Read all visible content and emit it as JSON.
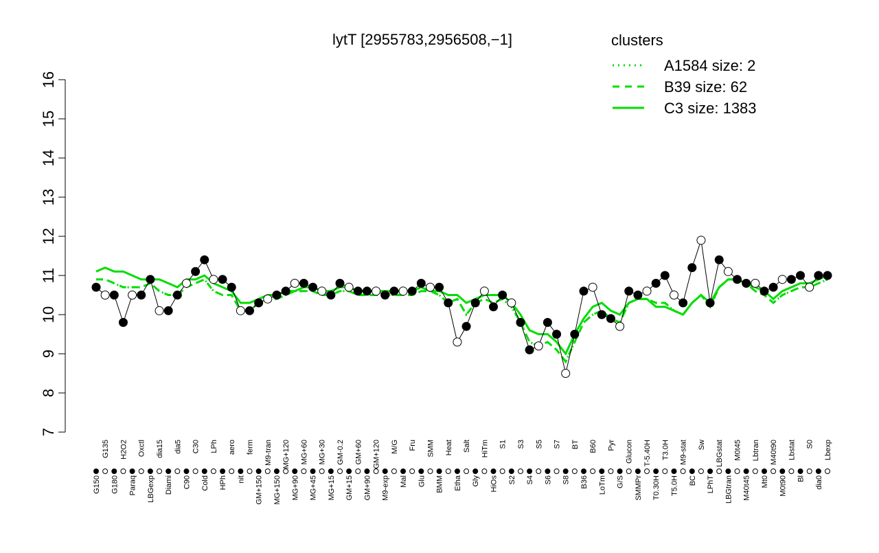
{
  "chart_data": {
    "type": "line",
    "title": "lytT [2955783,2956508,−1]",
    "legend_title": "clusters",
    "legend_position": "top-right",
    "categories": [
      "G150",
      "G135",
      "G180",
      "H2O2",
      "Paraq",
      "Oxctl",
      "LBGexp",
      "dia15",
      "Diami",
      "dia5",
      "C90",
      "C30",
      "Cold",
      "LPh",
      "HPh",
      "aero",
      "nit",
      "ferm",
      "GM+150",
      "M9-tran",
      "MG+150",
      "MG+120",
      "MG+90",
      "MG+60",
      "MG+45",
      "MG+30",
      "MG+15",
      "GM-0.2",
      "GM+15",
      "GM+60",
      "GM+90",
      "GM+120",
      "M9-exp",
      "M/G",
      "Mal",
      "Fru",
      "Glu",
      "SMM",
      "BMM",
      "Heat",
      "Etha",
      "Salt",
      "Gly",
      "HiTm",
      "HiOs",
      "S1",
      "S2",
      "S3",
      "S4",
      "S5",
      "S6",
      "S7",
      "S8",
      "BT",
      "B36",
      "B60",
      "LoTm",
      "Pyr",
      "G/S",
      "Glucon",
      "SMMPr",
      "T-5.40H",
      "T0.30H",
      "T3.0H",
      "T5.0H",
      "M9-stat",
      "BC",
      "Sw",
      "LPhT",
      "LBGstat",
      "LBGtran",
      "M0t45",
      "M40t45",
      "Lbtran",
      "Mt0",
      "M40t90",
      "M0t90",
      "Lbstat",
      "Bl",
      "S0",
      "dia0",
      "Lbexp"
    ],
    "values": [
      10.7,
      10.5,
      10.5,
      9.8,
      10.5,
      10.5,
      10.9,
      10.1,
      10.1,
      10.5,
      10.8,
      11.1,
      11.4,
      10.9,
      10.9,
      10.7,
      10.1,
      10.1,
      10.3,
      10.4,
      10.5,
      10.6,
      10.8,
      10.8,
      10.7,
      10.6,
      10.5,
      10.8,
      10.7,
      10.6,
      10.6,
      10.6,
      10.5,
      10.6,
      10.6,
      10.6,
      10.8,
      10.7,
      10.7,
      10.3,
      9.3,
      9.7,
      10.3,
      10.6,
      10.2,
      10.5,
      10.3,
      9.8,
      9.1,
      9.2,
      9.8,
      9.5,
      8.5,
      9.5,
      10.6,
      10.7,
      10.0,
      9.9,
      9.7,
      10.6,
      10.5,
      10.6,
      10.8,
      11.0,
      10.5,
      10.3,
      11.2,
      11.9,
      10.3,
      11.4,
      11.1,
      10.9,
      10.8,
      10.8,
      10.6,
      10.7,
      10.9,
      10.9,
      11.0,
      10.7,
      11.0,
      11.0
    ],
    "series": [
      {
        "name": "A1584 size: 2",
        "color": "#00dd00",
        "dash": "dotted",
        "values": [
          10.9,
          10.9,
          10.8,
          10.7,
          10.7,
          10.7,
          10.8,
          10.6,
          10.5,
          10.5,
          10.7,
          10.8,
          10.9,
          10.6,
          10.5,
          10.5,
          10.1,
          10.1,
          10.3,
          10.4,
          10.4,
          10.5,
          10.6,
          10.6,
          10.6,
          10.5,
          10.5,
          10.6,
          10.6,
          10.5,
          10.5,
          10.5,
          10.5,
          10.5,
          10.5,
          10.5,
          10.6,
          10.6,
          10.5,
          10.3,
          10.4,
          10.0,
          10.3,
          10.4,
          10.3,
          10.4,
          10.2,
          9.8,
          9.3,
          9.2,
          9.3,
          9.1,
          8.8,
          9.3,
          9.8,
          10.0,
          10.1,
          9.9,
          9.8,
          10.3,
          10.4,
          10.4,
          10.3,
          10.3,
          10.1,
          10.0,
          10.3,
          10.5,
          10.2,
          10.7,
          10.9,
          10.9,
          10.8,
          10.6,
          10.5,
          10.3,
          10.5,
          10.6,
          10.7,
          10.7,
          10.8,
          10.9
        ]
      },
      {
        "name": "B39 size: 62",
        "color": "#00dd00",
        "dash": "dashed",
        "values": [
          10.9,
          10.9,
          10.8,
          10.7,
          10.7,
          10.7,
          10.8,
          10.6,
          10.5,
          10.5,
          10.7,
          10.8,
          10.9,
          10.6,
          10.5,
          10.5,
          10.1,
          10.1,
          10.3,
          10.4,
          10.4,
          10.5,
          10.6,
          10.6,
          10.6,
          10.5,
          10.5,
          10.6,
          10.6,
          10.5,
          10.5,
          10.5,
          10.5,
          10.5,
          10.5,
          10.5,
          10.6,
          10.6,
          10.5,
          10.3,
          10.4,
          10.0,
          10.3,
          10.4,
          10.3,
          10.4,
          10.2,
          9.8,
          9.3,
          9.2,
          9.3,
          9.1,
          8.8,
          9.3,
          9.8,
          10.0,
          10.1,
          9.9,
          9.8,
          10.3,
          10.4,
          10.4,
          10.3,
          10.3,
          10.1,
          10.0,
          10.3,
          10.5,
          10.2,
          10.7,
          10.9,
          10.9,
          10.8,
          10.6,
          10.5,
          10.3,
          10.5,
          10.6,
          10.7,
          10.7,
          10.8,
          10.9
        ]
      },
      {
        "name": "C3 size: 1383",
        "color": "#00dd00",
        "dash": "solid",
        "values": [
          11.1,
          11.2,
          11.1,
          11.1,
          11.0,
          10.9,
          10.9,
          10.9,
          10.8,
          10.7,
          10.9,
          10.9,
          11.0,
          10.8,
          10.7,
          10.6,
          10.3,
          10.3,
          10.4,
          10.5,
          10.5,
          10.6,
          10.6,
          10.7,
          10.7,
          10.6,
          10.6,
          10.7,
          10.7,
          10.6,
          10.6,
          10.6,
          10.6,
          10.6,
          10.6,
          10.6,
          10.7,
          10.6,
          10.6,
          10.5,
          10.5,
          10.3,
          10.4,
          10.5,
          10.5,
          10.5,
          10.3,
          10.0,
          9.6,
          9.5,
          9.5,
          9.3,
          9.0,
          9.5,
          9.9,
          10.2,
          10.3,
          10.1,
          10.0,
          10.3,
          10.4,
          10.4,
          10.2,
          10.2,
          10.1,
          10.0,
          10.3,
          10.5,
          10.3,
          10.7,
          10.9,
          10.9,
          10.8,
          10.7,
          10.6,
          10.4,
          10.6,
          10.7,
          10.8,
          10.8,
          10.9,
          11.0
        ]
      }
    ],
    "ylim": [
      7,
      16
    ],
    "yticks": [
      7,
      8,
      9,
      10,
      11,
      12,
      13,
      14,
      15,
      16
    ]
  }
}
